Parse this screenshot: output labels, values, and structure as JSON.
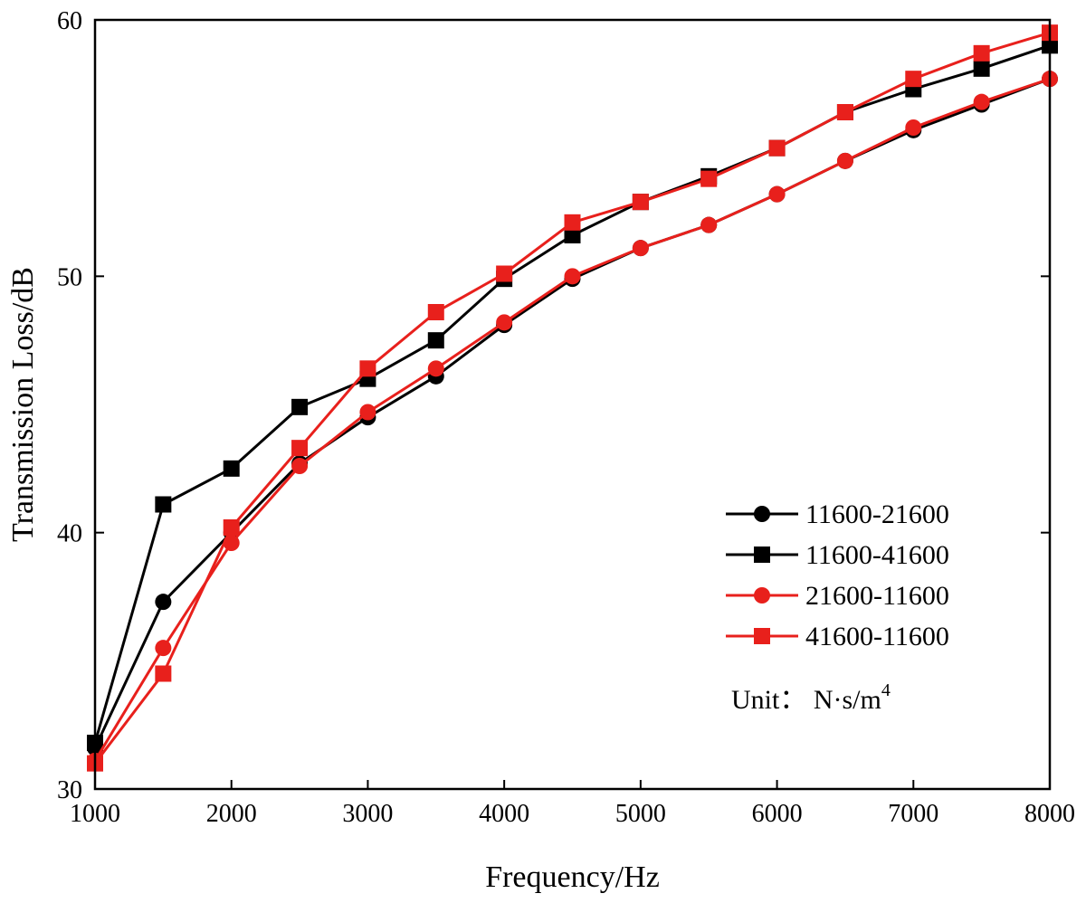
{
  "chart_data": {
    "type": "line",
    "title": "",
    "xlabel": "Frequency/Hz",
    "ylabel": "Transmission Loss/dB",
    "xlim": [
      1000,
      8000
    ],
    "ylim": [
      30,
      60
    ],
    "x_ticks": [
      1000,
      2000,
      3000,
      4000,
      5000,
      6000,
      7000,
      8000
    ],
    "y_ticks": [
      30,
      40,
      50,
      60
    ],
    "grid": false,
    "legend_position": "bottom-right",
    "x": [
      1000,
      1500,
      2000,
      2500,
      3000,
      3500,
      4000,
      4500,
      5000,
      5500,
      6000,
      6500,
      7000,
      7500,
      8000
    ],
    "series": [
      {
        "name": "11600-21600",
        "color": "#000000",
        "marker": "circle",
        "values": [
          31.6,
          37.3,
          40.0,
          42.7,
          44.5,
          46.1,
          48.1,
          49.9,
          51.1,
          52.0,
          53.2,
          54.5,
          55.7,
          56.7,
          57.7
        ]
      },
      {
        "name": "11600-41600",
        "color": "#000000",
        "marker": "square",
        "values": [
          31.8,
          41.1,
          42.5,
          44.9,
          46.0,
          47.5,
          49.9,
          51.6,
          52.9,
          53.9,
          55.0,
          56.4,
          57.3,
          58.1,
          59.0
        ]
      },
      {
        "name": "21600-11600",
        "color": "#e8201c",
        "marker": "circle",
        "values": [
          31.1,
          35.5,
          39.6,
          42.6,
          44.7,
          46.4,
          48.2,
          50.0,
          51.1,
          52.0,
          53.2,
          54.5,
          55.8,
          56.8,
          57.7
        ]
      },
      {
        "name": "41600-11600",
        "color": "#e8201c",
        "marker": "square",
        "values": [
          31.0,
          34.5,
          40.2,
          43.3,
          46.4,
          48.6,
          50.1,
          52.1,
          52.9,
          53.8,
          55.0,
          56.4,
          57.7,
          58.7,
          59.5
        ]
      }
    ],
    "annotation": {
      "prefix": "Unit： N·s/m",
      "superscript": "4"
    }
  }
}
